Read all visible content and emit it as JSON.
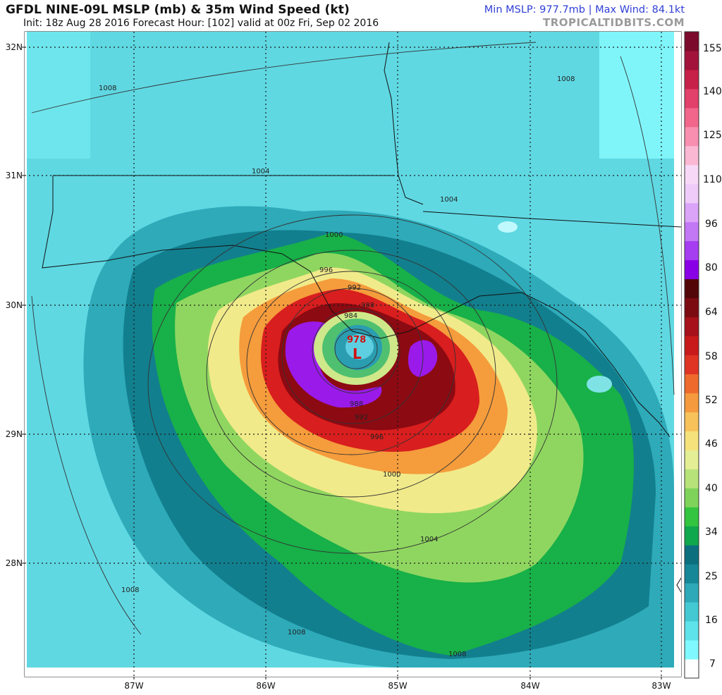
{
  "header": {
    "title": "GFDL NINE-09L MSLP (mb) & 35m Wind Speed (kt)",
    "subtitle": "Init: 18z Aug 28 2016   Forecast Hour: [102]   valid at 00z Fri, Sep 02 2016",
    "stats": "Min MSLP: 977.7mb | Max Wind: 84.1kt",
    "brand": "TROPICALTIDBITS.COM"
  },
  "map": {
    "lat_labels": [
      "32N",
      "31N",
      "30N",
      "29N",
      "28N"
    ],
    "lon_labels": [
      "87W",
      "86W",
      "85W",
      "84W",
      "83W"
    ],
    "center_pressure": "978",
    "low_symbol": "L",
    "isobar_labels": [
      "1008",
      "1008",
      "1004",
      "1004",
      "1000",
      "996",
      "992",
      "988",
      "984",
      "988",
      "992",
      "996",
      "1000",
      "1004",
      "1008",
      "1008",
      "1008"
    ]
  },
  "colorbar": {
    "labels": [
      "155",
      "140",
      "125",
      "110",
      "96",
      "80",
      "64",
      "58",
      "52",
      "46",
      "40",
      "34",
      "25",
      "16",
      "7"
    ],
    "colors": [
      "#ffffff",
      "#7ff9ff",
      "#5fe3ea",
      "#44c9d3",
      "#2ea9b8",
      "#168796",
      "#0b6f7e",
      "#10a84d",
      "#34c540",
      "#7fd35b",
      "#b7e27a",
      "#e4ee95",
      "#f5e27b",
      "#f7c25a",
      "#f59a3e",
      "#ee6a2c",
      "#df3323",
      "#c81a1a",
      "#a6111a",
      "#7c0b11",
      "#520607",
      "#8a00e6",
      "#a53df0",
      "#c277f5",
      "#dba4f8",
      "#efcbfa",
      "#f7d9f7",
      "#fbb8d3",
      "#f88fb0",
      "#f2668c",
      "#e1416a",
      "#c72049",
      "#a2123a",
      "#7c0a2c"
    ]
  }
}
